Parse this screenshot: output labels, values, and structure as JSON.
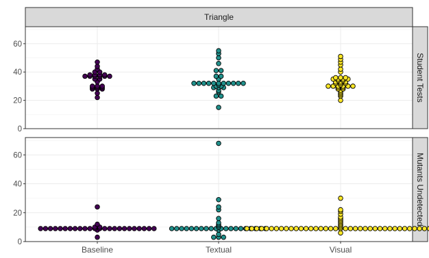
{
  "chart_data": {
    "type": "scatter",
    "style": "beeswarm-faceted",
    "column_strip": "Triangle",
    "categories": [
      "Baseline",
      "Textual",
      "Visual"
    ],
    "colors": {
      "Baseline": "#440154",
      "Textual": "#21918c",
      "Visual": "#fde725"
    },
    "panels": [
      {
        "strip": "Student Tests",
        "ylim": [
          0,
          72
        ],
        "yticks": [
          0,
          20,
          40,
          60
        ],
        "series": [
          {
            "category": "Baseline",
            "values": [
              22,
              25,
              28,
              28,
              28,
              29,
              29,
              29,
              30,
              30,
              30,
              33,
              35,
              35,
              37,
              37,
              37,
              37,
              37,
              37,
              38,
              38,
              38,
              38,
              40,
              40,
              42,
              44,
              47
            ]
          },
          {
            "category": "Textual",
            "values": [
              15,
              23,
              23,
              26,
              27,
              29,
              29,
              29,
              30,
              30,
              31,
              32,
              32,
              32,
              32,
              32,
              32,
              32,
              32,
              32,
              32,
              32,
              35,
              37,
              37,
              41,
              41,
              46,
              50,
              53,
              55
            ]
          },
          {
            "category": "Visual",
            "values": [
              20,
              23,
              24,
              25,
              26,
              27,
              28,
              28,
              29,
              29,
              30,
              30,
              30,
              30,
              30,
              30,
              31,
              32,
              32,
              32,
              33,
              33,
              33,
              34,
              34,
              35,
              35,
              35,
              35,
              36,
              36,
              36,
              40,
              42,
              45,
              47,
              49,
              51
            ]
          }
        ]
      },
      {
        "strip": "Mutants Undetected",
        "ylim": [
          0,
          72
        ],
        "yticks": [
          0,
          20,
          40,
          60
        ],
        "series": [
          {
            "category": "Baseline",
            "values": [
              3,
              8,
              9,
              9,
              9,
              9,
              9,
              9,
              9,
              9,
              9,
              9,
              9,
              9,
              9,
              9,
              9,
              9,
              9,
              9,
              9,
              9,
              9,
              9,
              9,
              9,
              10,
              10,
              12,
              24
            ]
          },
          {
            "category": "Textual",
            "values": [
              3,
              3,
              3,
              5,
              8,
              9,
              9,
              9,
              9,
              9,
              9,
              9,
              9,
              9,
              9,
              9,
              9,
              9,
              9,
              9,
              9,
              9,
              9,
              9,
              9,
              10,
              11,
              12,
              13,
              16,
              22,
              24,
              29,
              68
            ]
          },
          {
            "category": "Visual",
            "values": [
              6,
              9,
              9,
              9,
              9,
              9,
              9,
              9,
              9,
              9,
              9,
              9,
              9,
              9,
              9,
              9,
              9,
              9,
              9,
              9,
              9,
              9,
              9,
              9,
              9,
              9,
              9,
              9,
              9,
              9,
              9,
              9,
              9,
              9,
              9,
              9,
              9,
              9,
              9,
              9,
              10,
              11,
              12,
              13,
              14,
              15,
              16,
              17,
              19,
              21,
              22,
              30
            ]
          }
        ]
      }
    ]
  }
}
